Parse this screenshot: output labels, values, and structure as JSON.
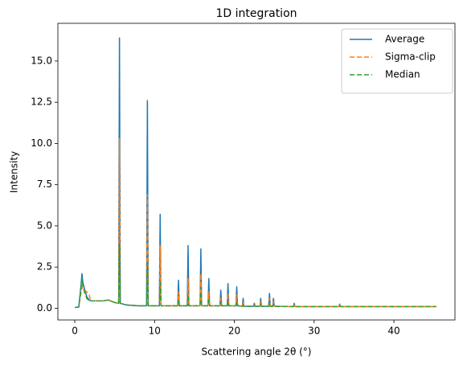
{
  "chart_data": {
    "type": "line",
    "title": "1D integration",
    "x_label": "Scattering angle 2θ (°)",
    "y_label": "Intensity",
    "x": [
      0,
      0.5,
      0.8,
      0.9,
      1.0,
      1.2,
      1.5,
      1.8,
      2.0,
      2.5,
      3.5,
      4.2,
      5.0,
      5.5,
      5.6,
      5.7,
      6.5,
      8.0,
      9.0,
      9.1,
      9.2,
      10.6,
      10.7,
      10.8,
      12.9,
      13.0,
      13.1,
      14.1,
      14.2,
      14.3,
      15.7,
      15.8,
      15.9,
      16.7,
      16.8,
      16.9,
      18.2,
      18.3,
      18.4,
      19.1,
      19.2,
      19.3,
      20.2,
      20.3,
      20.4,
      21.0,
      21.1,
      21.2,
      22.4,
      22.5,
      22.6,
      23.2,
      23.3,
      23.4,
      24.3,
      24.4,
      24.5,
      24.8,
      24.9,
      25.0,
      27.4,
      27.5,
      27.6,
      33.1,
      33.2,
      33.3,
      40,
      45.3
    ],
    "series": [
      {
        "name": "Average",
        "color": "#1f77b4",
        "linestyle": "solid",
        "values": [
          0.05,
          0.07,
          1.5,
          2.1,
          1.6,
          1.2,
          0.7,
          0.5,
          0.45,
          0.45,
          0.45,
          0.5,
          0.35,
          0.3,
          16.4,
          0.3,
          0.2,
          0.15,
          0.15,
          12.6,
          0.15,
          0.15,
          5.7,
          0.15,
          0.15,
          1.7,
          0.15,
          0.15,
          3.8,
          0.15,
          0.15,
          3.6,
          0.15,
          0.15,
          1.8,
          0.15,
          0.15,
          1.1,
          0.15,
          0.15,
          1.5,
          0.15,
          0.15,
          1.3,
          0.15,
          0.12,
          0.6,
          0.12,
          0.12,
          0.3,
          0.12,
          0.12,
          0.6,
          0.12,
          0.12,
          0.9,
          0.12,
          0.12,
          0.6,
          0.12,
          0.1,
          0.3,
          0.1,
          0.1,
          0.25,
          0.1,
          0.1,
          0.1
        ]
      },
      {
        "name": "Sigma-clip",
        "color": "#ff7f0e",
        "linestyle": "dashed",
        "values": [
          0.05,
          0.07,
          1.0,
          1.3,
          1.1,
          1.1,
          1.0,
          0.8,
          0.45,
          0.45,
          0.45,
          0.5,
          0.35,
          0.3,
          10.3,
          0.3,
          0.2,
          0.15,
          0.15,
          6.9,
          0.15,
          0.15,
          3.8,
          0.15,
          0.15,
          1.0,
          0.15,
          0.15,
          1.8,
          0.15,
          0.15,
          2.1,
          0.15,
          0.15,
          1.0,
          0.15,
          0.15,
          0.6,
          0.15,
          0.15,
          0.9,
          0.15,
          0.15,
          0.8,
          0.15,
          0.12,
          0.4,
          0.12,
          0.12,
          0.2,
          0.12,
          0.12,
          0.4,
          0.12,
          0.12,
          0.6,
          0.12,
          0.12,
          0.4,
          0.12,
          0.1,
          0.2,
          0.1,
          0.1,
          0.2,
          0.1,
          0.1,
          0.1
        ]
      },
      {
        "name": "Median",
        "color": "#2ca02c",
        "linestyle": "dashed",
        "values": [
          0.05,
          0.07,
          1.3,
          1.8,
          1.4,
          1.0,
          0.6,
          0.45,
          0.45,
          0.45,
          0.45,
          0.5,
          0.35,
          0.3,
          3.9,
          0.3,
          0.2,
          0.15,
          0.15,
          2.7,
          0.15,
          0.15,
          1.5,
          0.15,
          0.15,
          0.5,
          0.15,
          0.15,
          0.8,
          0.15,
          0.15,
          1.0,
          0.15,
          0.15,
          0.5,
          0.15,
          0.15,
          0.3,
          0.15,
          0.15,
          0.4,
          0.15,
          0.15,
          0.4,
          0.15,
          0.12,
          0.2,
          0.12,
          0.12,
          0.15,
          0.12,
          0.12,
          0.2,
          0.12,
          0.12,
          0.3,
          0.12,
          0.12,
          0.2,
          0.12,
          0.1,
          0.15,
          0.1,
          0.1,
          0.15,
          0.1,
          0.1,
          0.1
        ]
      }
    ],
    "xlim": [
      -2.12,
      47.65
    ],
    "xticks": [
      0,
      10,
      20,
      30,
      40
    ],
    "ylim": [
      -0.71,
      17.29
    ],
    "yticks": [
      {
        "value": 0,
        "label": "0.0"
      },
      {
        "value": 2.5,
        "label": "2.5"
      },
      {
        "value": 5,
        "label": "5.0"
      },
      {
        "value": 7.5,
        "label": "7.5"
      },
      {
        "value": 10,
        "label": "10.0"
      },
      {
        "value": 12.5,
        "label": "12.5"
      },
      {
        "value": 15,
        "label": "15.0"
      }
    ],
    "legend": "upper right",
    "grid": false
  }
}
